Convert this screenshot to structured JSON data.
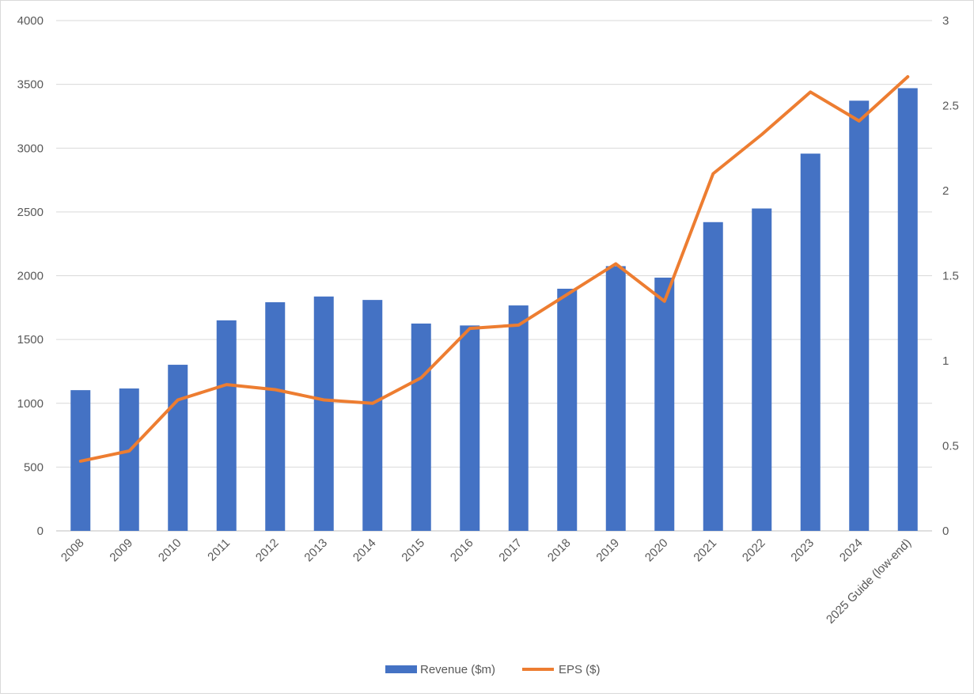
{
  "chart_data": {
    "type": "bar",
    "categories": [
      "2008",
      "2009",
      "2010",
      "2011",
      "2012",
      "2013",
      "2014",
      "2015",
      "2016",
      "2017",
      "2018",
      "2019",
      "2020",
      "2021",
      "2022",
      "2023",
      "2024",
      "2025 Guide (low-end)"
    ],
    "series": [
      {
        "name": "Revenue ($m)",
        "type": "bar",
        "axis": "left",
        "color": "#4472C4",
        "values": [
          1103,
          1116,
          1302,
          1650,
          1792,
          1837,
          1810,
          1625,
          1610,
          1767,
          1898,
          2075,
          1985,
          2420,
          2527,
          2957,
          3372,
          3470
        ]
      },
      {
        "name": "EPS ($)",
        "type": "line",
        "axis": "right",
        "color": "#ED7D31",
        "values": [
          0.41,
          0.47,
          0.77,
          0.86,
          0.83,
          0.77,
          0.75,
          0.9,
          1.19,
          1.21,
          1.39,
          1.57,
          1.35,
          2.1,
          2.33,
          2.58,
          2.41,
          2.67
        ]
      }
    ],
    "y_left": {
      "min": 0,
      "max": 4000,
      "ticks": [
        0,
        500,
        1000,
        1500,
        2000,
        2500,
        3000,
        3500,
        4000
      ]
    },
    "y_right": {
      "min": 0,
      "max": 3,
      "ticks": [
        "0",
        "0.5",
        "1",
        "1.5",
        "2",
        "2.5",
        "3"
      ]
    },
    "grid": true,
    "legend": "bottom-center",
    "title": "",
    "xlabel": "",
    "ylabel": ""
  }
}
